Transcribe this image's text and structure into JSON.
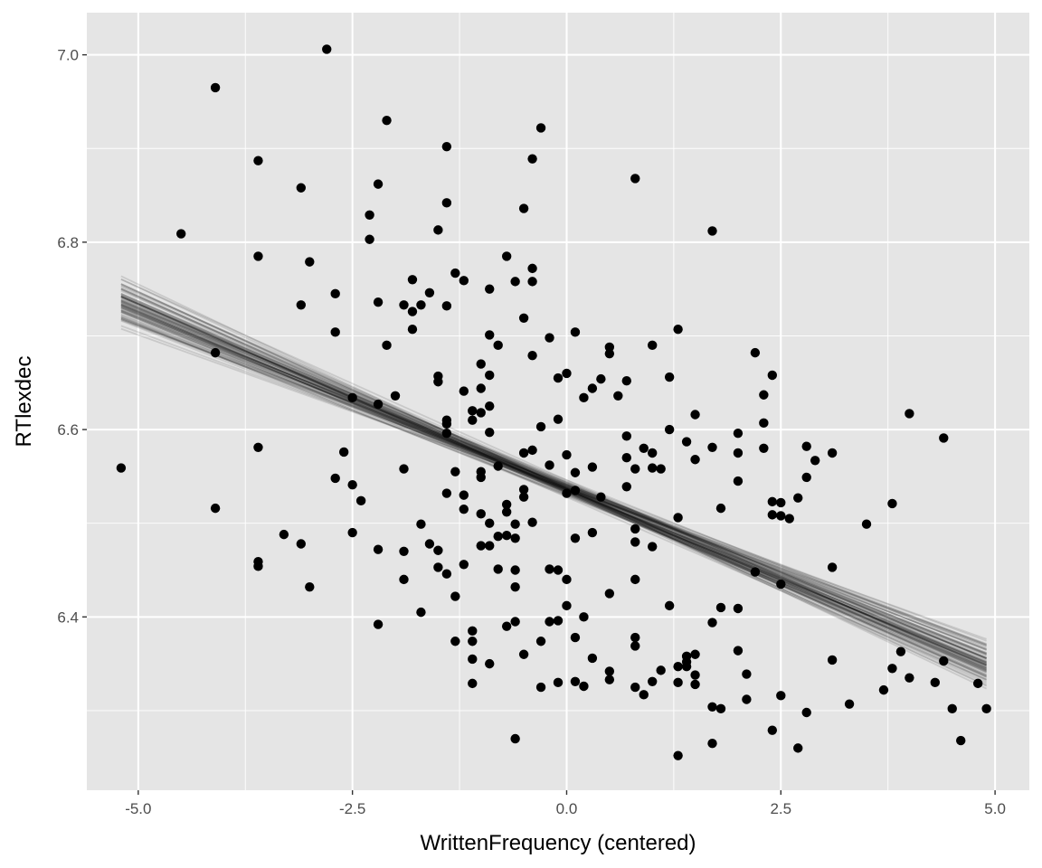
{
  "chart_data": {
    "type": "scatter",
    "title": "",
    "xlabel": "WrittenFrequency (centered)",
    "ylabel": "RTlexdec",
    "xlim": [
      -5.6,
      5.4
    ],
    "ylim": [
      6.215,
      7.045
    ],
    "x_ticks": [
      -5.0,
      -2.5,
      0.0,
      2.5,
      5.0
    ],
    "x_tick_labels": [
      "-5.0",
      "-2.5",
      "0.0",
      "2.5",
      "5.0"
    ],
    "y_ticks": [
      6.4,
      6.6,
      6.8,
      7.0
    ],
    "y_tick_labels": [
      "6.4",
      "6.6",
      "6.8",
      "7.0"
    ],
    "grid": true,
    "colors": {
      "panel": "#e5e5e5",
      "grid": "#ffffff",
      "points": "#000000",
      "lines": "#000000"
    },
    "points": [
      [
        -5.2,
        6.559
      ],
      [
        -4.5,
        6.809
      ],
      [
        -4.1,
        6.965
      ],
      [
        -4.1,
        6.682
      ],
      [
        -4.1,
        6.516
      ],
      [
        -3.6,
        6.887
      ],
      [
        -3.6,
        6.785
      ],
      [
        -3.6,
        6.581
      ],
      [
        -3.6,
        6.459
      ],
      [
        -3.6,
        6.454
      ],
      [
        -3.3,
        6.488
      ],
      [
        -3.1,
        6.858
      ],
      [
        -3.1,
        6.733
      ],
      [
        -3.1,
        6.478
      ],
      [
        -3.0,
        6.779
      ],
      [
        -3.0,
        6.432
      ],
      [
        -2.8,
        7.006
      ],
      [
        -2.7,
        6.745
      ],
      [
        -2.7,
        6.704
      ],
      [
        -2.7,
        6.548
      ],
      [
        -2.6,
        6.576
      ],
      [
        -2.5,
        6.634
      ],
      [
        -2.5,
        6.541
      ],
      [
        -2.5,
        6.49
      ],
      [
        -2.4,
        6.524
      ],
      [
        -2.3,
        6.829
      ],
      [
        -2.3,
        6.803
      ],
      [
        -2.2,
        6.627
      ],
      [
        -2.2,
        6.472
      ],
      [
        -2.2,
        6.862
      ],
      [
        -2.2,
        6.736
      ],
      [
        -2.2,
        6.392
      ],
      [
        -2.1,
        6.93
      ],
      [
        -2.1,
        6.69
      ],
      [
        -2.0,
        6.636
      ],
      [
        -1.9,
        6.733
      ],
      [
        -1.9,
        6.558
      ],
      [
        -1.9,
        6.44
      ],
      [
        -1.9,
        6.47
      ],
      [
        -1.8,
        6.726
      ],
      [
        -1.8,
        6.707
      ],
      [
        -1.8,
        6.76
      ],
      [
        -1.7,
        6.733
      ],
      [
        -1.7,
        6.499
      ],
      [
        -1.7,
        6.405
      ],
      [
        -1.6,
        6.478
      ],
      [
        -1.6,
        6.746
      ],
      [
        -1.5,
        6.651
      ],
      [
        -1.5,
        6.657
      ],
      [
        -1.5,
        6.471
      ],
      [
        -1.5,
        6.453
      ],
      [
        -1.5,
        6.813
      ],
      [
        -1.4,
        6.902
      ],
      [
        -1.4,
        6.842
      ],
      [
        -1.4,
        6.732
      ],
      [
        -1.4,
        6.61
      ],
      [
        -1.4,
        6.606
      ],
      [
        -1.4,
        6.596
      ],
      [
        -1.4,
        6.532
      ],
      [
        -1.4,
        6.446
      ],
      [
        -1.3,
        6.422
      ],
      [
        -1.3,
        6.767
      ],
      [
        -1.3,
        6.555
      ],
      [
        -1.3,
        6.374
      ],
      [
        -1.2,
        6.759
      ],
      [
        -1.2,
        6.641
      ],
      [
        -1.2,
        6.53
      ],
      [
        -1.2,
        6.515
      ],
      [
        -1.2,
        6.456
      ],
      [
        -1.1,
        6.385
      ],
      [
        -1.1,
        6.355
      ],
      [
        -1.1,
        6.329
      ],
      [
        -1.1,
        6.374
      ],
      [
        -1.1,
        6.61
      ],
      [
        -1.1,
        6.62
      ],
      [
        -1.0,
        6.549
      ],
      [
        -1.0,
        6.555
      ],
      [
        -1.0,
        6.67
      ],
      [
        -1.0,
        6.644
      ],
      [
        -1.0,
        6.618
      ],
      [
        -1.0,
        6.51
      ],
      [
        -1.0,
        6.476
      ],
      [
        -0.9,
        6.75
      ],
      [
        -0.9,
        6.701
      ],
      [
        -0.9,
        6.625
      ],
      [
        -0.9,
        6.5
      ],
      [
        -0.9,
        6.476
      ],
      [
        -0.9,
        6.35
      ],
      [
        -0.9,
        6.658
      ],
      [
        -0.9,
        6.597
      ],
      [
        -0.8,
        6.69
      ],
      [
        -0.8,
        6.486
      ],
      [
        -0.8,
        6.451
      ],
      [
        -0.8,
        6.561
      ],
      [
        -0.7,
        6.52
      ],
      [
        -0.7,
        6.512
      ],
      [
        -0.7,
        6.487
      ],
      [
        -0.7,
        6.39
      ],
      [
        -0.7,
        6.785
      ],
      [
        -0.6,
        6.758
      ],
      [
        -0.6,
        6.499
      ],
      [
        -0.6,
        6.484
      ],
      [
        -0.6,
        6.45
      ],
      [
        -0.6,
        6.432
      ],
      [
        -0.6,
        6.395
      ],
      [
        -0.6,
        6.27
      ],
      [
        -0.5,
        6.719
      ],
      [
        -0.5,
        6.575
      ],
      [
        -0.5,
        6.536
      ],
      [
        -0.5,
        6.528
      ],
      [
        -0.5,
        6.36
      ],
      [
        -0.5,
        6.836
      ],
      [
        -0.4,
        6.758
      ],
      [
        -0.4,
        6.772
      ],
      [
        -0.4,
        6.679
      ],
      [
        -0.4,
        6.578
      ],
      [
        -0.4,
        6.501
      ],
      [
        -0.4,
        6.889
      ],
      [
        -0.3,
        6.922
      ],
      [
        -0.3,
        6.603
      ],
      [
        -0.3,
        6.374
      ],
      [
        -0.3,
        6.325
      ],
      [
        -0.2,
        6.698
      ],
      [
        -0.2,
        6.562
      ],
      [
        -0.2,
        6.451
      ],
      [
        -0.2,
        6.395
      ],
      [
        -0.1,
        6.611
      ],
      [
        -0.1,
        6.45
      ],
      [
        -0.1,
        6.396
      ],
      [
        -0.1,
        6.33
      ],
      [
        -0.1,
        6.655
      ],
      [
        0.0,
        6.66
      ],
      [
        0.0,
        6.573
      ],
      [
        0.0,
        6.532
      ],
      [
        0.0,
        6.44
      ],
      [
        0.0,
        6.412
      ],
      [
        0.1,
        6.704
      ],
      [
        0.1,
        6.554
      ],
      [
        0.1,
        6.535
      ],
      [
        0.1,
        6.484
      ],
      [
        0.1,
        6.378
      ],
      [
        0.1,
        6.331
      ],
      [
        0.2,
        6.634
      ],
      [
        0.2,
        6.4
      ],
      [
        0.2,
        6.326
      ],
      [
        0.3,
        6.56
      ],
      [
        0.3,
        6.644
      ],
      [
        0.3,
        6.49
      ],
      [
        0.3,
        6.356
      ],
      [
        0.4,
        6.528
      ],
      [
        0.4,
        6.654
      ],
      [
        0.5,
        6.681
      ],
      [
        0.5,
        6.688
      ],
      [
        0.5,
        6.425
      ],
      [
        0.5,
        6.342
      ],
      [
        0.5,
        6.333
      ],
      [
        0.6,
        6.636
      ],
      [
        0.7,
        6.57
      ],
      [
        0.7,
        6.539
      ],
      [
        0.7,
        6.652
      ],
      [
        0.7,
        6.593
      ],
      [
        0.8,
        6.868
      ],
      [
        0.8,
        6.558
      ],
      [
        0.8,
        6.494
      ],
      [
        0.8,
        6.48
      ],
      [
        0.8,
        6.44
      ],
      [
        0.8,
        6.378
      ],
      [
        0.8,
        6.369
      ],
      [
        0.8,
        6.325
      ],
      [
        0.9,
        6.58
      ],
      [
        0.9,
        6.317
      ],
      [
        1.0,
        6.69
      ],
      [
        1.0,
        6.575
      ],
      [
        1.0,
        6.475
      ],
      [
        1.0,
        6.559
      ],
      [
        1.0,
        6.331
      ],
      [
        1.1,
        6.558
      ],
      [
        1.1,
        6.343
      ],
      [
        1.2,
        6.656
      ],
      [
        1.2,
        6.6
      ],
      [
        1.2,
        6.412
      ],
      [
        1.3,
        6.707
      ],
      [
        1.3,
        6.506
      ],
      [
        1.3,
        6.33
      ],
      [
        1.3,
        6.347
      ],
      [
        1.3,
        6.252
      ],
      [
        1.4,
        6.358
      ],
      [
        1.4,
        6.347
      ],
      [
        1.4,
        6.587
      ],
      [
        1.4,
        6.352
      ],
      [
        1.5,
        6.616
      ],
      [
        1.5,
        6.568
      ],
      [
        1.5,
        6.36
      ],
      [
        1.5,
        6.338
      ],
      [
        1.5,
        6.328
      ],
      [
        1.7,
        6.812
      ],
      [
        1.7,
        6.581
      ],
      [
        1.7,
        6.394
      ],
      [
        1.7,
        6.304
      ],
      [
        1.7,
        6.265
      ],
      [
        1.8,
        6.516
      ],
      [
        1.8,
        6.41
      ],
      [
        1.8,
        6.302
      ],
      [
        2.0,
        6.596
      ],
      [
        2.0,
        6.409
      ],
      [
        2.0,
        6.364
      ],
      [
        2.0,
        6.575
      ],
      [
        2.0,
        6.545
      ],
      [
        2.1,
        6.339
      ],
      [
        2.1,
        6.312
      ],
      [
        2.2,
        6.682
      ],
      [
        2.2,
        6.448
      ],
      [
        2.3,
        6.637
      ],
      [
        2.3,
        6.607
      ],
      [
        2.3,
        6.58
      ],
      [
        2.4,
        6.658
      ],
      [
        2.4,
        6.523
      ],
      [
        2.4,
        6.509
      ],
      [
        2.4,
        6.279
      ],
      [
        2.5,
        6.522
      ],
      [
        2.5,
        6.508
      ],
      [
        2.5,
        6.435
      ],
      [
        2.5,
        6.316
      ],
      [
        2.6,
        6.505
      ],
      [
        2.7,
        6.527
      ],
      [
        2.7,
        6.26
      ],
      [
        2.8,
        6.298
      ],
      [
        2.8,
        6.549
      ],
      [
        2.8,
        6.582
      ],
      [
        2.9,
        6.567
      ],
      [
        3.1,
        6.575
      ],
      [
        3.1,
        6.453
      ],
      [
        3.1,
        6.354
      ],
      [
        3.3,
        6.307
      ],
      [
        3.5,
        6.499
      ],
      [
        3.7,
        6.322
      ],
      [
        3.8,
        6.521
      ],
      [
        3.8,
        6.345
      ],
      [
        3.9,
        6.363
      ],
      [
        4.0,
        6.617
      ],
      [
        4.0,
        6.335
      ],
      [
        4.3,
        6.33
      ],
      [
        4.4,
        6.591
      ],
      [
        4.4,
        6.353
      ],
      [
        4.5,
        6.302
      ],
      [
        4.6,
        6.268
      ],
      [
        4.8,
        6.329
      ],
      [
        4.9,
        6.302
      ]
    ],
    "regression_lines": {
      "x_range": [
        -5.2,
        4.9
      ],
      "intercept_slope": [
        [
          6.544,
          -0.0354
        ],
        [
          6.535,
          -0.0396
        ],
        [
          6.536,
          -0.038
        ],
        [
          6.538,
          -0.0408
        ],
        [
          6.54,
          -0.0368
        ],
        [
          6.541,
          -0.0388
        ],
        [
          6.533,
          -0.0402
        ],
        [
          6.535,
          -0.0374
        ],
        [
          6.543,
          -0.0394
        ],
        [
          6.538,
          -0.036
        ],
        [
          6.546,
          -0.0412
        ],
        [
          6.532,
          -0.0384
        ],
        [
          6.537,
          -0.035
        ],
        [
          6.539,
          -0.0416
        ],
        [
          6.534,
          -0.0378
        ],
        [
          6.542,
          -0.04
        ],
        [
          6.53,
          -0.0364
        ],
        [
          6.536,
          -0.0422
        ],
        [
          6.538,
          -0.0344
        ],
        [
          6.54,
          -0.0392
        ],
        [
          6.536,
          -0.0372
        ],
        [
          6.544,
          -0.0386
        ],
        [
          6.532,
          -0.0406
        ],
        [
          6.536,
          -0.0336
        ],
        [
          6.541,
          -0.0378
        ],
        [
          6.528,
          -0.0398
        ],
        [
          6.546,
          -0.0366
        ],
        [
          6.537,
          -0.043
        ],
        [
          6.534,
          -0.0354
        ],
        [
          6.539,
          -0.0382
        ],
        [
          6.534,
          -0.039
        ],
        [
          6.542,
          -0.0362
        ],
        [
          6.53,
          -0.0376
        ],
        [
          6.537,
          -0.041
        ],
        [
          6.54,
          -0.0346
        ],
        [
          6.533,
          -0.0384
        ],
        [
          6.538,
          -0.0418
        ],
        [
          6.542,
          -0.037
        ],
        [
          6.536,
          -0.0394
        ],
        [
          6.531,
          -0.0356
        ],
        [
          6.539,
          -0.039
        ],
        [
          6.537,
          -0.0328
        ],
        [
          6.535,
          -0.0404
        ],
        [
          6.543,
          -0.0382
        ],
        [
          6.529,
          -0.0368
        ],
        [
          6.537,
          -0.0436
        ],
        [
          6.541,
          -0.035
        ],
        [
          6.535,
          -0.038
        ],
        [
          6.538,
          -0.0398
        ],
        [
          6.533,
          -0.0372
        ],
        [
          6.538,
          -0.0388
        ],
        [
          6.536,
          -0.0396
        ],
        [
          6.54,
          -0.0358
        ],
        [
          6.534,
          -0.0414
        ],
        [
          6.537,
          -0.0376
        ],
        [
          6.541,
          -0.034
        ],
        [
          6.532,
          -0.0392
        ],
        [
          6.536,
          -0.0368
        ],
        [
          6.544,
          -0.0404
        ],
        [
          6.535,
          -0.036
        ],
        [
          6.537,
          -0.0384
        ],
        [
          6.539,
          -0.0374
        ],
        [
          6.533,
          -0.042
        ],
        [
          6.54,
          -0.0366
        ],
        [
          6.536,
          -0.0388
        ],
        [
          6.538,
          -0.0352
        ],
        [
          6.534,
          -0.04
        ],
        [
          6.542,
          -0.0378
        ],
        [
          6.531,
          -0.0386
        ],
        [
          6.539,
          -0.0362
        ],
        [
          6.537,
          -0.0394
        ],
        [
          6.535,
          -0.0382
        ],
        [
          6.541,
          -0.0408
        ],
        [
          6.533,
          -0.037
        ],
        [
          6.538,
          -0.0346
        ],
        [
          6.536,
          -0.039
        ],
        [
          6.54,
          -0.0376
        ],
        [
          6.534,
          -0.0402
        ],
        [
          6.538,
          -0.0364
        ],
        [
          6.536,
          -0.038
        ]
      ]
    }
  }
}
